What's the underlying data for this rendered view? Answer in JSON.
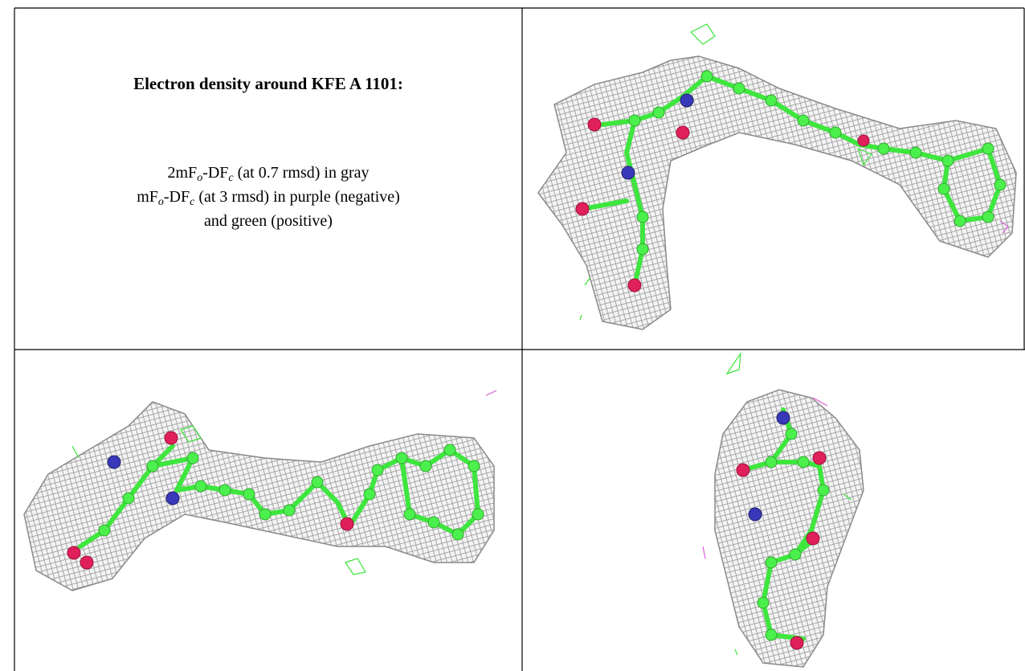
{
  "title": "Electron density around KFE A 1101:",
  "caption": {
    "lines": [
      [
        "2mF",
        "o",
        "-DF",
        "c",
        " (at 0.7 rmsd) in gray"
      ],
      [
        "mF",
        "o",
        "-DF",
        "c",
        " (at 3 rmsd) in purple (negative)"
      ],
      [
        "and green (positive)"
      ]
    ]
  }
}
